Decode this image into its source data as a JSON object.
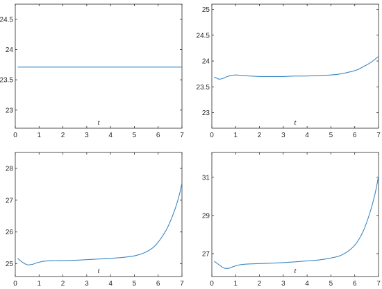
{
  "chart_data": [
    {
      "type": "line",
      "xlabel": "t",
      "xlim": [
        0,
        7
      ],
      "ylim": [
        22.7,
        24.75
      ],
      "xticks": [
        "0",
        "1",
        "2",
        "3",
        "4",
        "5",
        "6",
        "7"
      ],
      "yticks": [
        {
          "v": 23,
          "label": "23"
        },
        {
          "v": 23.5,
          "label": "23.5"
        },
        {
          "v": 24,
          "label": "24"
        },
        {
          "v": 24.5,
          "label": "24.5"
        }
      ],
      "x": [
        0.1,
        0.5,
        1.0,
        1.5,
        2.0,
        2.5,
        3.0,
        3.5,
        4.0,
        4.5,
        5.0,
        5.5,
        6.0,
        6.5,
        7.0
      ],
      "y": [
        23.71,
        23.71,
        23.71,
        23.71,
        23.71,
        23.71,
        23.71,
        23.71,
        23.71,
        23.71,
        23.71,
        23.71,
        23.71,
        23.71,
        23.71
      ],
      "line_color": "#3A87C4"
    },
    {
      "type": "line",
      "xlabel": "t",
      "xlim": [
        0,
        7
      ],
      "ylim": [
        22.7,
        25.1
      ],
      "xticks": [
        "0",
        "1",
        "2",
        "3",
        "4",
        "5",
        "6",
        "7"
      ],
      "yticks": [
        {
          "v": 23,
          "label": "23"
        },
        {
          "v": 23.5,
          "label": "23.5"
        },
        {
          "v": 24,
          "label": "24"
        },
        {
          "v": 24.5,
          "label": "24.5"
        },
        {
          "v": 25,
          "label": "25"
        }
      ],
      "x": [
        0.1,
        0.2,
        0.3,
        0.45,
        0.6,
        0.8,
        1.0,
        1.3,
        1.6,
        2.0,
        2.5,
        3.0,
        3.5,
        4.0,
        4.5,
        5.0,
        5.4,
        5.8,
        6.1,
        6.4,
        6.7,
        7.0
      ],
      "y": [
        23.69,
        23.67,
        23.65,
        23.66,
        23.69,
        23.72,
        23.73,
        23.72,
        23.71,
        23.7,
        23.7,
        23.7,
        23.71,
        23.71,
        23.72,
        23.73,
        23.75,
        23.79,
        23.83,
        23.9,
        23.98,
        24.09
      ],
      "line_color": "#3A87C4"
    },
    {
      "type": "line",
      "xlabel": "t",
      "xlim": [
        0,
        7
      ],
      "ylim": [
        24.6,
        28.5
      ],
      "xticks": [
        "0",
        "1",
        "2",
        "3",
        "4",
        "5",
        "6",
        "7"
      ],
      "yticks": [
        {
          "v": 25,
          "label": "25"
        },
        {
          "v": 26,
          "label": "26"
        },
        {
          "v": 27,
          "label": "27"
        },
        {
          "v": 28,
          "label": "28"
        }
      ],
      "x": [
        0.1,
        0.3,
        0.5,
        0.7,
        0.9,
        1.2,
        1.6,
        2.0,
        2.5,
        3.0,
        3.5,
        4.0,
        4.5,
        5.0,
        5.4,
        5.8,
        6.1,
        6.4,
        6.7,
        6.9,
        7.0
      ],
      "y": [
        25.17,
        25.05,
        24.97,
        24.98,
        25.03,
        25.08,
        25.1,
        25.1,
        25.11,
        25.13,
        25.15,
        25.17,
        25.2,
        25.25,
        25.34,
        25.52,
        25.78,
        26.15,
        26.7,
        27.2,
        27.55
      ],
      "line_color": "#3A87C4"
    },
    {
      "type": "line",
      "xlabel": "t",
      "xlim": [
        0,
        7
      ],
      "ylim": [
        25.8,
        32.3
      ],
      "xticks": [
        "0",
        "1",
        "2",
        "3",
        "4",
        "5",
        "6",
        "7"
      ],
      "yticks": [
        {
          "v": 27,
          "label": "27"
        },
        {
          "v": 29,
          "label": "29"
        },
        {
          "v": 31,
          "label": "31"
        }
      ],
      "x": [
        0.1,
        0.3,
        0.5,
        0.7,
        0.9,
        1.2,
        1.6,
        2.0,
        2.5,
        3.0,
        3.5,
        4.0,
        4.5,
        5.0,
        5.4,
        5.8,
        6.1,
        6.4,
        6.7,
        6.9,
        7.0
      ],
      "y": [
        26.6,
        26.42,
        26.25,
        26.23,
        26.32,
        26.42,
        26.46,
        26.48,
        26.5,
        26.53,
        26.57,
        26.62,
        26.67,
        26.77,
        26.9,
        27.2,
        27.6,
        28.3,
        29.4,
        30.4,
        31.1
      ],
      "line_color": "#3A87C4"
    }
  ]
}
